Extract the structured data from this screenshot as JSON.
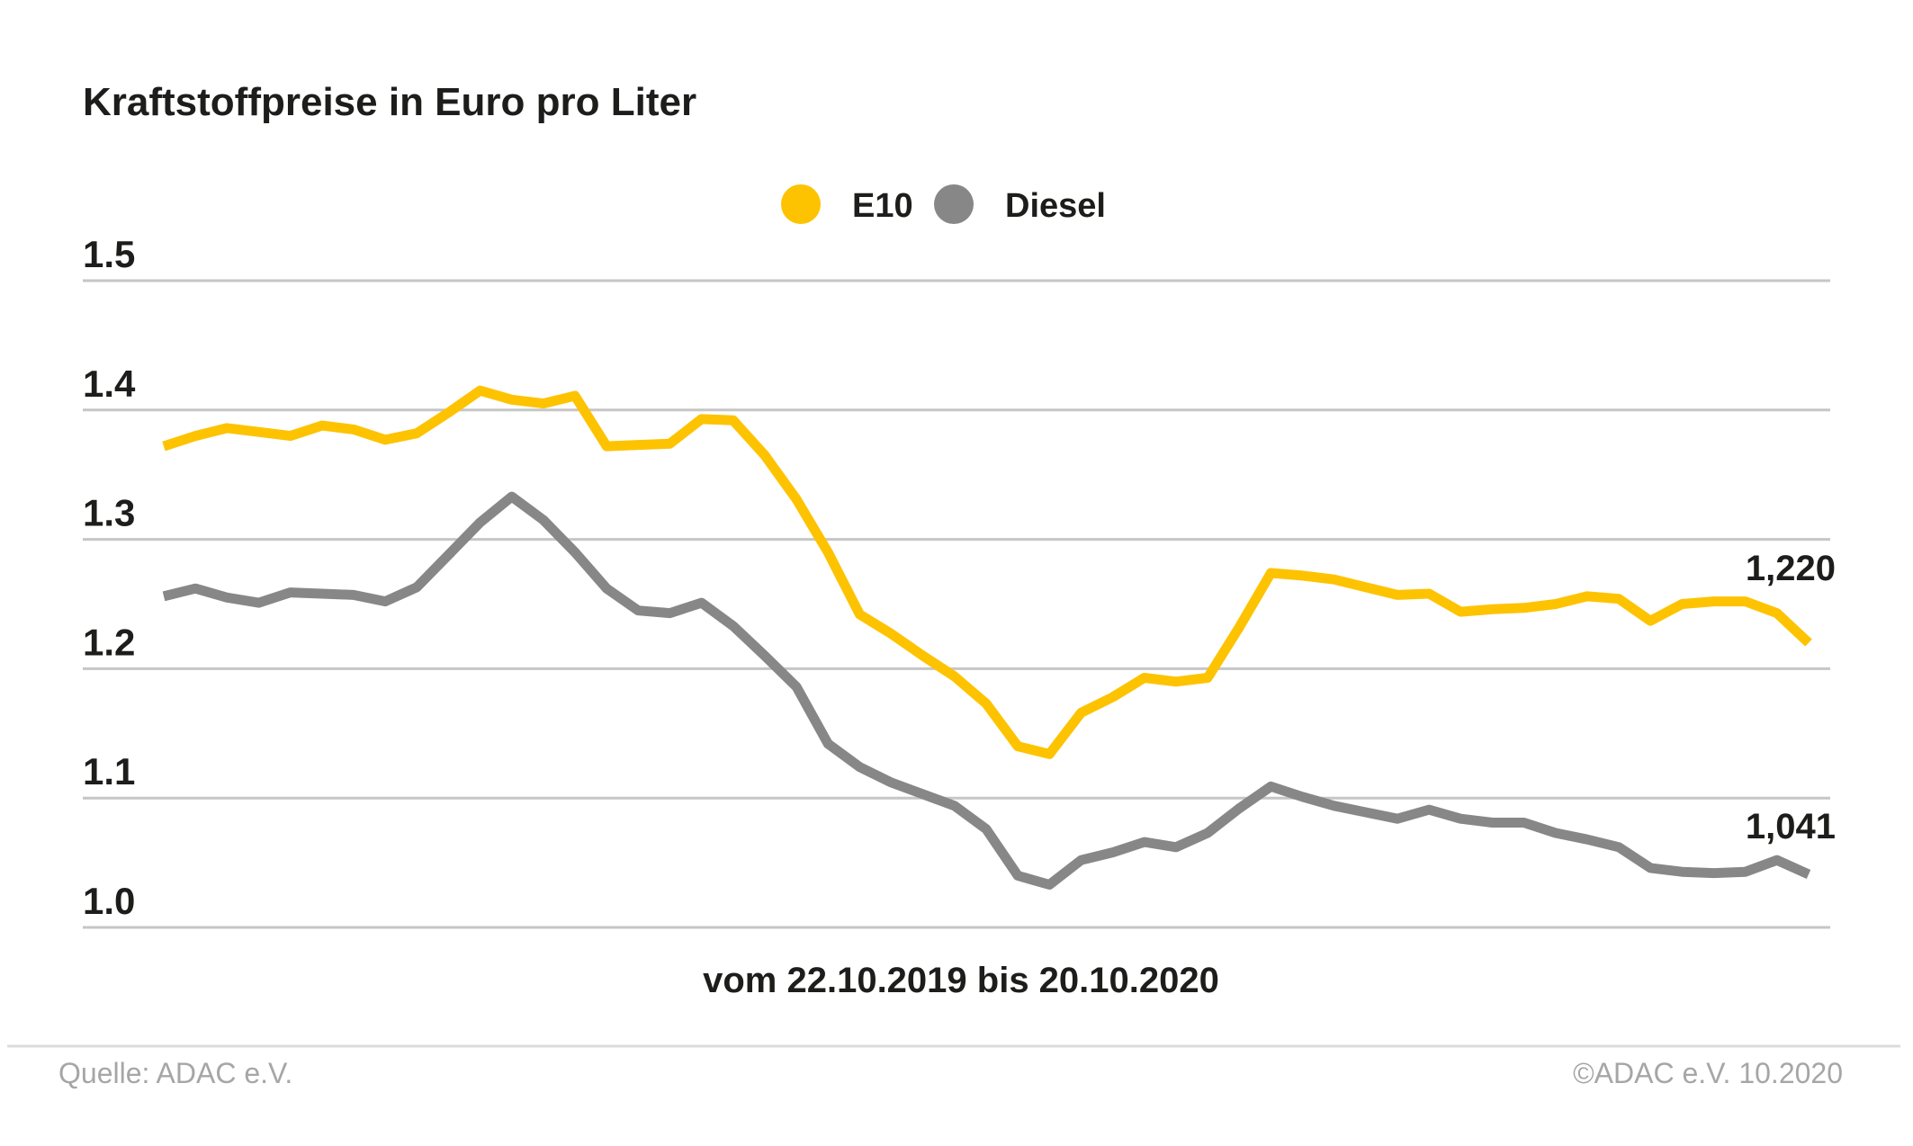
{
  "title": "Kraftstoffpreise in Euro pro Liter",
  "legend": {
    "items": [
      {
        "label": "E10",
        "color": "#fdc300"
      },
      {
        "label": "Diesel",
        "color": "#878787"
      }
    ]
  },
  "footer": {
    "source": "Quelle: ADAC e.V.",
    "copyright": "©ADAC e.V. 10.2020"
  },
  "chart_data": {
    "type": "line",
    "title": "Kraftstoffpreise in Euro pro Liter",
    "xlabel": "vom 22.10.2019 bis 20.10.2020",
    "ylabel": "",
    "date_start": "22.10.2019",
    "date_end": "20.10.2020",
    "x_unit": "weeks",
    "ylim": [
      1.0,
      1.5
    ],
    "yticks": [
      {
        "label": "1.5",
        "value": 1.5
      },
      {
        "label": "1.4",
        "value": 1.4
      },
      {
        "label": "1.3",
        "value": 1.3
      },
      {
        "label": "1.2",
        "value": 1.2
      },
      {
        "label": "1.1",
        "value": 1.1
      },
      {
        "label": "1.0",
        "value": 1.0
      }
    ],
    "grid": "horizontal",
    "legend_position": "top-center",
    "series": [
      {
        "name": "E10",
        "color": "#fdc300",
        "end_label": "1,220",
        "values": [
          1.372,
          1.38,
          1.386,
          1.383,
          1.38,
          1.388,
          1.385,
          1.377,
          1.382,
          1.398,
          1.415,
          1.408,
          1.405,
          1.411,
          1.372,
          1.373,
          1.374,
          1.393,
          1.392,
          1.365,
          1.331,
          1.29,
          1.242,
          1.227,
          1.21,
          1.194,
          1.173,
          1.14,
          1.134,
          1.166,
          1.178,
          1.193,
          1.19,
          1.193,
          1.232,
          1.274,
          1.272,
          1.269,
          1.263,
          1.257,
          1.258,
          1.244,
          1.246,
          1.247,
          1.25,
          1.256,
          1.254,
          1.237,
          1.25,
          1.252,
          1.252,
          1.243,
          1.22
        ]
      },
      {
        "name": "Diesel",
        "color": "#878787",
        "end_label": "1,041",
        "values": [
          1.256,
          1.262,
          1.255,
          1.251,
          1.259,
          1.258,
          1.257,
          1.252,
          1.263,
          1.288,
          1.313,
          1.333,
          1.315,
          1.29,
          1.262,
          1.245,
          1.243,
          1.251,
          1.233,
          1.21,
          1.186,
          1.142,
          1.124,
          1.112,
          1.103,
          1.094,
          1.076,
          1.04,
          1.033,
          1.052,
          1.058,
          1.066,
          1.062,
          1.073,
          1.092,
          1.109,
          1.101,
          1.094,
          1.089,
          1.084,
          1.091,
          1.084,
          1.081,
          1.081,
          1.073,
          1.068,
          1.062,
          1.046,
          1.043,
          1.042,
          1.043,
          1.052,
          1.041
        ]
      }
    ]
  }
}
